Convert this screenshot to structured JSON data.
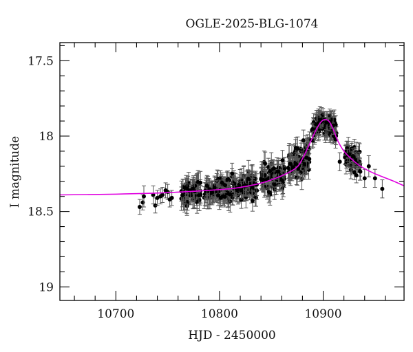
{
  "chart_data": {
    "type": "scatter",
    "title": "OGLE-2025-BLG-1074",
    "xlabel": "HJD - 2450000",
    "ylabel": "I magnitude",
    "xlim": [
      10646,
      10978
    ],
    "ylim": [
      19.09,
      17.38
    ],
    "y_inverted": true,
    "grid": false,
    "legend": null,
    "x_ticks": {
      "major": [
        10700,
        10800,
        10900
      ],
      "major_labels": [
        "10700",
        "10800",
        "10900"
      ],
      "minor_step": 20
    },
    "y_ticks": {
      "major": [
        17.5,
        18,
        18.5,
        19
      ],
      "major_labels": [
        "17.5",
        "18",
        "18.5",
        "19"
      ],
      "minor_step": 0.1
    },
    "colors": {
      "data": "#000000",
      "errorbar": "#555555",
      "model": "#e000e0",
      "frame": "#000000"
    },
    "series": [
      {
        "name": "model",
        "kind": "line",
        "color": "#e000e0",
        "x": [
          10646,
          10700,
          10750,
          10800,
          10820,
          10841,
          10861,
          10874,
          10880,
          10887,
          10893,
          10898,
          10902,
          10906,
          10910,
          10914,
          10920,
          10927,
          10934,
          10941,
          10950,
          10961,
          10970,
          10978
        ],
        "y": [
          18.39,
          18.385,
          18.375,
          18.355,
          18.34,
          18.31,
          18.26,
          18.21,
          18.15,
          18.05,
          17.96,
          17.905,
          17.89,
          17.905,
          17.96,
          18.03,
          18.1,
          18.15,
          18.19,
          18.22,
          18.25,
          18.28,
          18.305,
          18.33
        ]
      },
      {
        "name": "OGLE I-band data",
        "kind": "scatter_errorbar",
        "color": "#000000",
        "sparse_points": [
          {
            "x": 10723,
            "y": 18.47,
            "err": 0.05
          },
          {
            "x": 10726,
            "y": 18.44,
            "err": 0.05
          },
          {
            "x": 10727,
            "y": 18.4,
            "err": 0.07
          },
          {
            "x": 10736,
            "y": 18.39,
            "err": 0.06
          },
          {
            "x": 10738,
            "y": 18.46,
            "err": 0.05
          },
          {
            "x": 10740,
            "y": 18.41,
            "err": 0.05
          },
          {
            "x": 10743,
            "y": 18.4,
            "err": 0.05
          },
          {
            "x": 10745,
            "y": 18.39,
            "err": 0.05
          },
          {
            "x": 10748,
            "y": 18.36,
            "err": 0.05
          },
          {
            "x": 10750,
            "y": 18.37,
            "err": 0.05
          },
          {
            "x": 10752,
            "y": 18.42,
            "err": 0.05
          },
          {
            "x": 10754,
            "y": 18.41,
            "err": 0.05
          },
          {
            "x": 10916,
            "y": 18.17,
            "err": 0.06
          },
          {
            "x": 10930,
            "y": 18.24,
            "err": 0.05
          },
          {
            "x": 10932,
            "y": 18.26,
            "err": 0.05
          },
          {
            "x": 10940,
            "y": 18.28,
            "err": 0.06
          },
          {
            "x": 10944,
            "y": 18.2,
            "err": 0.07
          },
          {
            "x": 10950,
            "y": 18.28,
            "err": 0.06
          },
          {
            "x": 10957,
            "y": 18.35,
            "err": 0.06
          }
        ],
        "dense_clusters": [
          {
            "x_start": 10763,
            "x_end": 10782,
            "y_center": 18.38,
            "y_spread": 0.06,
            "err": 0.06,
            "n": 70
          },
          {
            "x_start": 10785,
            "x_end": 10811,
            "y_center": 18.37,
            "y_spread": 0.06,
            "err": 0.06,
            "n": 90
          },
          {
            "x_start": 10812,
            "x_end": 10836,
            "y_center": 18.33,
            "y_spread": 0.07,
            "err": 0.06,
            "n": 90
          },
          {
            "x_start": 10840,
            "x_end": 10863,
            "y_center": 18.28,
            "y_spread": 0.08,
            "err": 0.06,
            "n": 90
          },
          {
            "x_start": 10866,
            "x_end": 10887,
            "y_center": 18.15,
            "y_spread": 0.09,
            "err": 0.06,
            "n": 90
          },
          {
            "x_start": 10889,
            "x_end": 10900,
            "y_center": 17.9,
            "y_spread": 0.06,
            "err": 0.05,
            "n": 50
          },
          {
            "x_start": 10901,
            "x_end": 10913,
            "y_center": 17.96,
            "y_spread": 0.07,
            "err": 0.05,
            "n": 50
          },
          {
            "x_start": 10921,
            "x_end": 10936,
            "y_center": 18.14,
            "y_spread": 0.06,
            "err": 0.05,
            "n": 50
          }
        ]
      }
    ]
  }
}
